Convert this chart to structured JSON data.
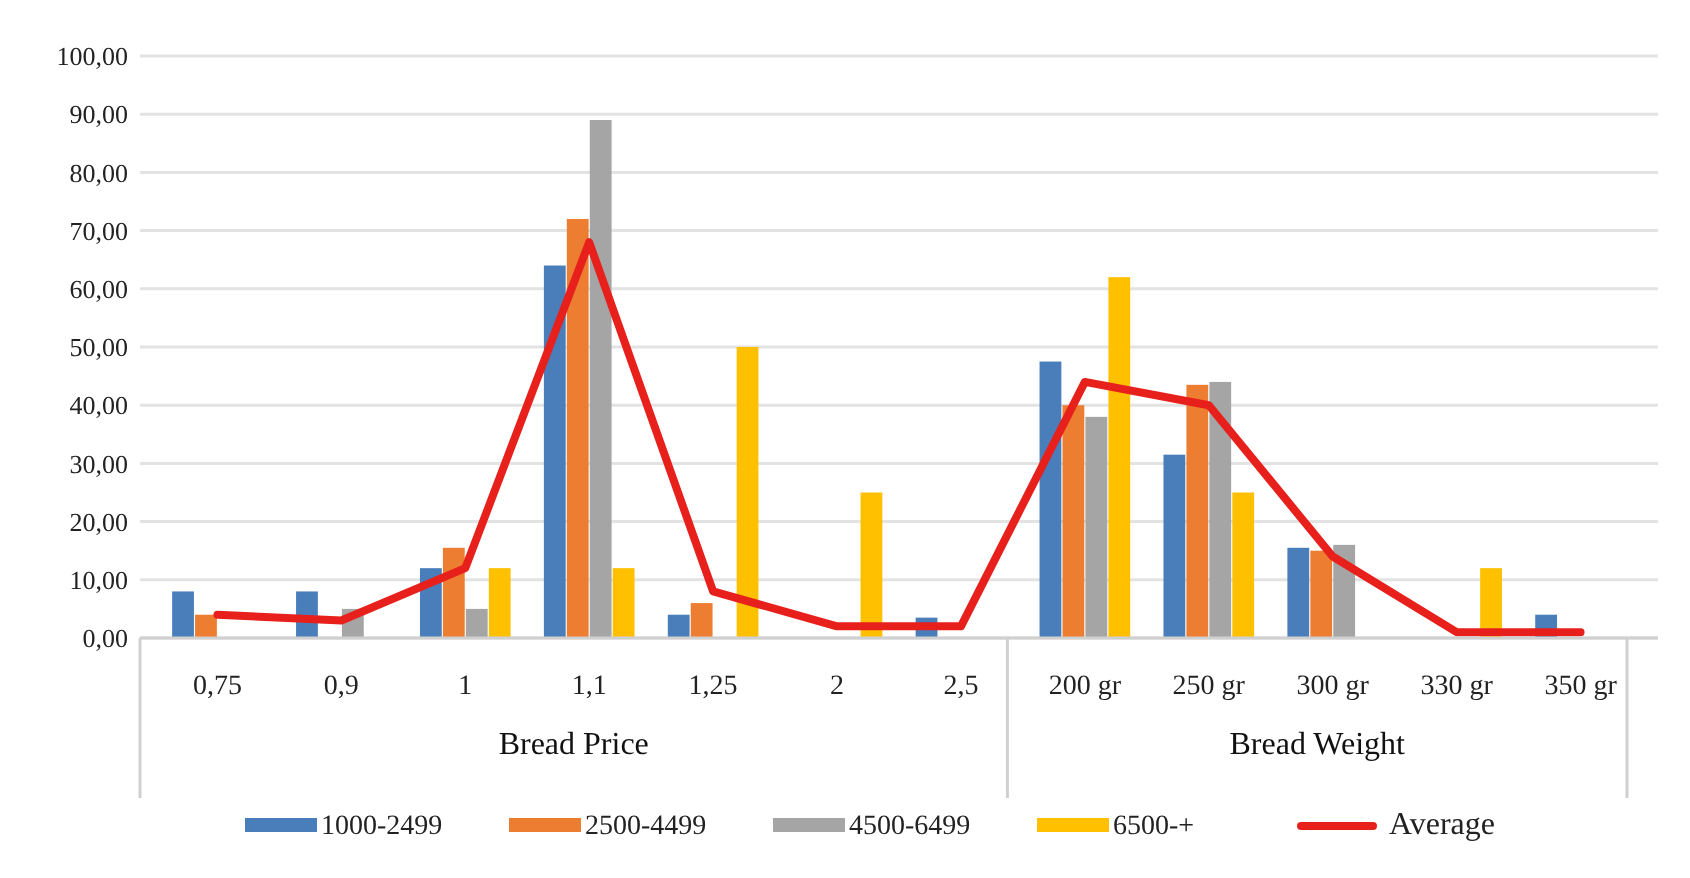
{
  "chart_data": {
    "type": "bar",
    "categories": [
      "0,75",
      "0,9",
      "1",
      "1,1",
      "1,25",
      "2",
      "2,5",
      "200 gr",
      "250 gr",
      "300 gr",
      "330 gr",
      "350 gr"
    ],
    "series": [
      {
        "name": "1000-2499",
        "color": "#4a7ebb",
        "values": [
          8,
          8,
          12,
          64,
          4,
          null,
          3.5,
          47.5,
          31.5,
          15.5,
          null,
          4
        ]
      },
      {
        "name": "2500-4499",
        "color": "#ed7d31",
        "values": [
          4,
          null,
          15.5,
          72,
          6,
          null,
          null,
          40,
          43.5,
          15,
          null,
          null
        ]
      },
      {
        "name": "4500-6499",
        "color": "#a5a5a5",
        "values": [
          null,
          5,
          5,
          89,
          null,
          null,
          null,
          38,
          44,
          16,
          null,
          null
        ]
      },
      {
        "name": "6500-+",
        "color": "#ffc000",
        "values": [
          null,
          null,
          12,
          12,
          50,
          25,
          null,
          62,
          25,
          null,
          12,
          null
        ]
      },
      {
        "name": "Average",
        "type": "line",
        "color": "#e8201c",
        "values": [
          4,
          3,
          12,
          68,
          8,
          2,
          2,
          44,
          40,
          14,
          1,
          1
        ]
      }
    ],
    "ylim": [
      0,
      100
    ],
    "yticks": [
      {
        "value": 0,
        "label": "0,00"
      },
      {
        "value": 10,
        "label": "10,00"
      },
      {
        "value": 20,
        "label": "20,00"
      },
      {
        "value": 30,
        "label": "30,00"
      },
      {
        "value": 40,
        "label": "40,00"
      },
      {
        "value": 50,
        "label": "50,00"
      },
      {
        "value": 60,
        "label": "60,00"
      },
      {
        "value": 70,
        "label": "70,00"
      },
      {
        "value": 80,
        "label": "80,00"
      },
      {
        "value": 90,
        "label": "90,00"
      },
      {
        "value": 100,
        "label": "100,00"
      }
    ],
    "annotations": [
      "Bread Price",
      "Bread Weight"
    ],
    "grid": "y",
    "legend": "bottom",
    "marker": "none",
    "line_style": "solid"
  }
}
